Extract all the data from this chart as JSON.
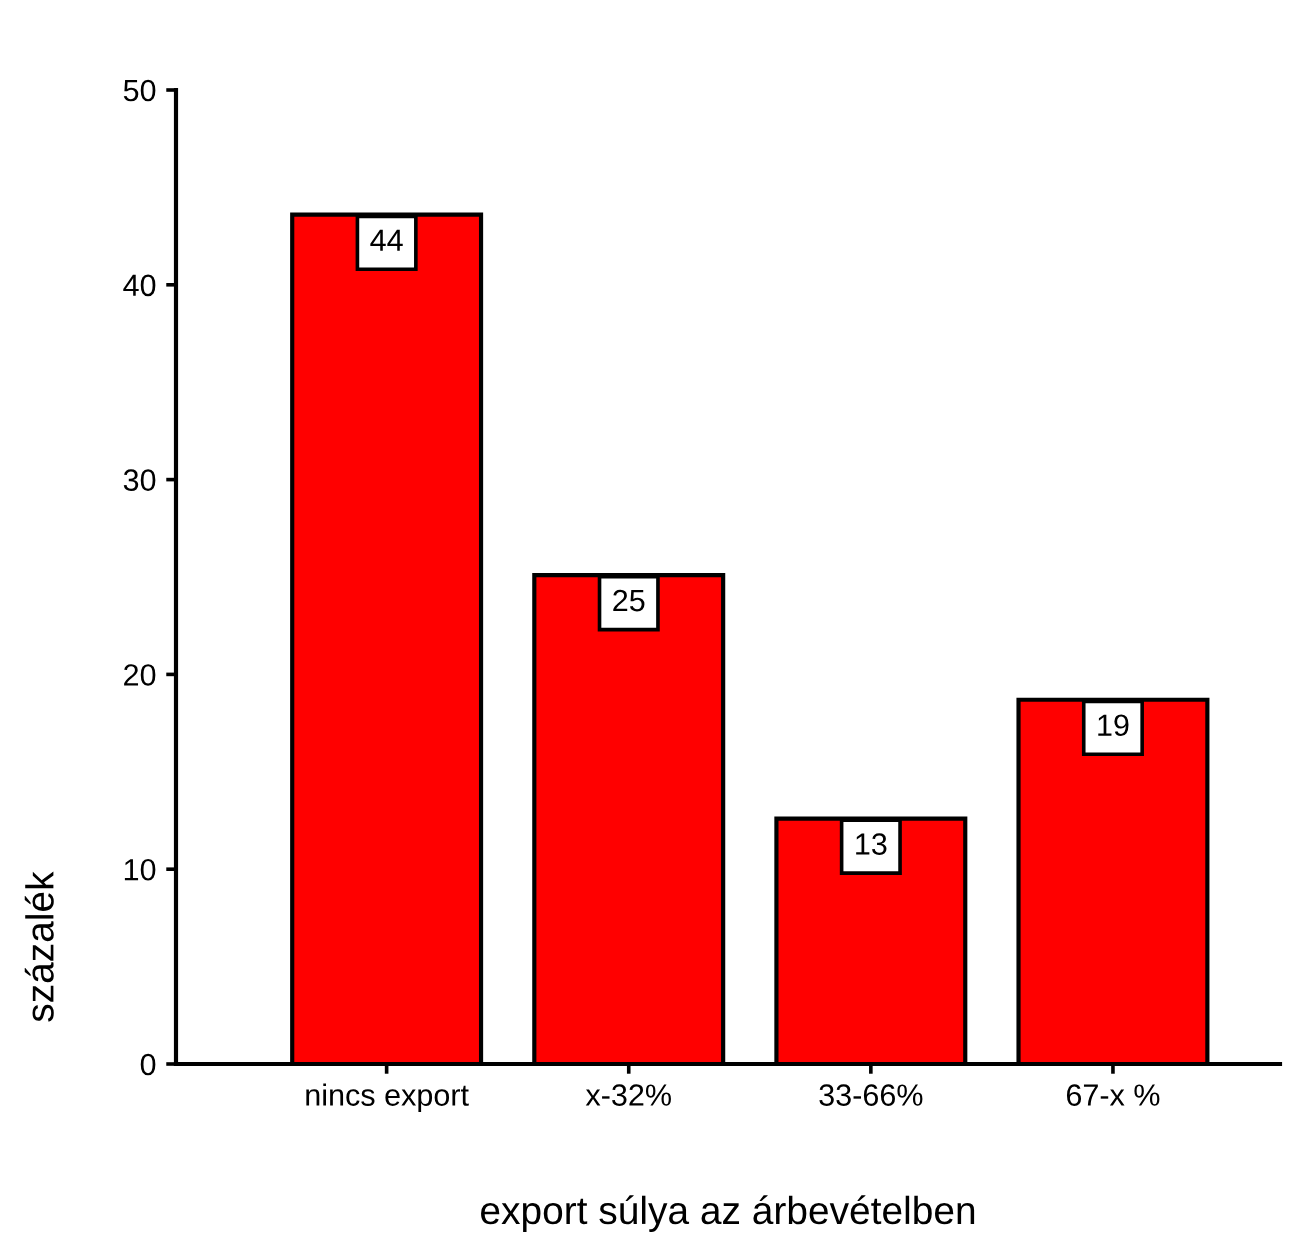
{
  "chart_data": {
    "type": "bar",
    "xlabel": "export súlya az árbevételben",
    "ylabel": "százalék",
    "categories": [
      "nincs export",
      "x-32%",
      "33-66%",
      "67-x %"
    ],
    "values": [
      43.6,
      25.1,
      12.6,
      18.7
    ],
    "color": "#ff0000",
    "value_labels": [
      "44",
      "25",
      "13",
      "19"
    ],
    "ylim": [
      0,
      50
    ],
    "yticks": [
      0,
      10,
      20,
      30,
      40,
      50
    ],
    "grid": false,
    "legend": false
  }
}
